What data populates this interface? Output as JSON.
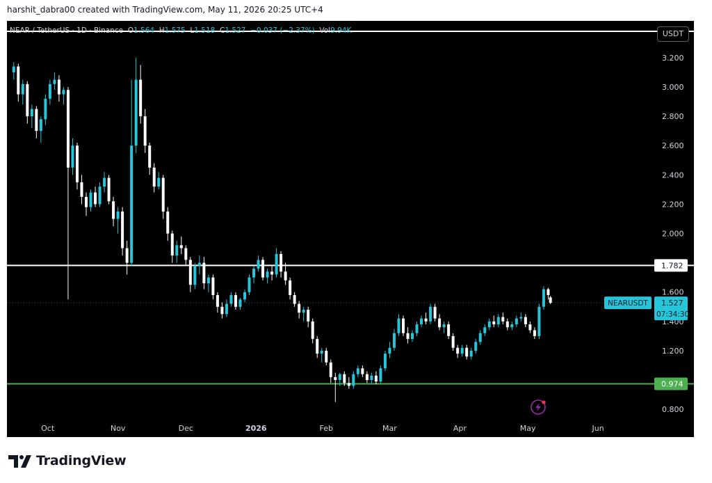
{
  "header": {
    "credit": "harshit_dabra00 created with TradingView.com, May 11, 2026 20:25 UTC+4"
  },
  "legend": {
    "symbol": "NEAR / TetherUS · 1D · Binance",
    "o_label": "O",
    "o": "1.564",
    "h_label": "H",
    "h": "1.575",
    "l_label": "L",
    "l": "1.518",
    "c_label": "C",
    "c": "1.527",
    "chg": "−0.037 (−2.37%)",
    "vol_label": "Vol",
    "vol": "9.94K"
  },
  "currency_button": "USDT",
  "price_tag": {
    "symbol": "NEARUSDT",
    "price": "1.527",
    "countdown": "07:34:30"
  },
  "brand": {
    "name": "TradingView"
  },
  "colors": {
    "up": "#26c6da",
    "down": "#ffffff",
    "resistance": "#ffffff",
    "support": "#4caf50",
    "background": "#000000"
  },
  "chart_data": {
    "type": "candlestick",
    "symbol": "NEARUSDT",
    "ylim": [
      0.72,
      3.38
    ],
    "yticks": [
      "0.800",
      "1.200",
      "1.400",
      "1.600",
      "2.000",
      "2.200",
      "2.400",
      "2.600",
      "2.800",
      "3.000",
      "3.200"
    ],
    "xticks": [
      "Oct",
      "Nov",
      "Dec",
      "2026",
      "Feb",
      "Mar",
      "Apr",
      "May",
      "Jun"
    ],
    "levels": [
      {
        "value": 3.38,
        "label": ""
      },
      {
        "value": 1.782,
        "label": "1.782"
      },
      {
        "value": 0.974,
        "label": "0.974"
      }
    ],
    "last_price": 1.527,
    "candles": [
      [
        "2025-09-16",
        3.1,
        3.17,
        3.05,
        3.14
      ],
      [
        "2025-09-18",
        3.14,
        3.16,
        2.9,
        2.95
      ],
      [
        "2025-09-20",
        2.95,
        3.05,
        2.88,
        3.02
      ],
      [
        "2025-09-22",
        3.02,
        3.04,
        2.75,
        2.8
      ],
      [
        "2025-09-24",
        2.8,
        2.88,
        2.72,
        2.85
      ],
      [
        "2025-09-26",
        2.85,
        2.87,
        2.65,
        2.7
      ],
      [
        "2025-09-28",
        2.7,
        2.8,
        2.62,
        2.78
      ],
      [
        "2025-09-30",
        2.78,
        2.95,
        2.74,
        2.92
      ],
      [
        "2025-10-02",
        2.92,
        3.05,
        2.88,
        3.02
      ],
      [
        "2025-10-04",
        3.02,
        3.1,
        2.98,
        3.05
      ],
      [
        "2025-10-06",
        3.05,
        3.08,
        2.9,
        2.95
      ],
      [
        "2025-10-08",
        2.95,
        3.0,
        2.88,
        2.98
      ],
      [
        "2025-10-10",
        2.98,
        3.0,
        1.55,
        2.45
      ],
      [
        "2025-10-12",
        2.45,
        2.65,
        2.4,
        2.6
      ],
      [
        "2025-10-14",
        2.6,
        2.62,
        2.3,
        2.35
      ],
      [
        "2025-10-16",
        2.35,
        2.4,
        2.2,
        2.25
      ],
      [
        "2025-10-18",
        2.25,
        2.28,
        2.12,
        2.18
      ],
      [
        "2025-10-20",
        2.18,
        2.3,
        2.15,
        2.28
      ],
      [
        "2025-10-22",
        2.28,
        2.32,
        2.18,
        2.2
      ],
      [
        "2025-10-24",
        2.2,
        2.35,
        2.18,
        2.32
      ],
      [
        "2025-10-26",
        2.32,
        2.42,
        2.28,
        2.38
      ],
      [
        "2025-10-28",
        2.38,
        2.4,
        2.2,
        2.22
      ],
      [
        "2025-10-30",
        2.22,
        2.25,
        2.05,
        2.1
      ],
      [
        "2025-11-01",
        2.1,
        2.18,
        2.0,
        2.15
      ],
      [
        "2025-11-03",
        2.15,
        2.18,
        1.85,
        1.9
      ],
      [
        "2025-11-05",
        1.9,
        1.95,
        1.72,
        1.8
      ],
      [
        "2025-11-07",
        1.8,
        3.05,
        1.78,
        2.6
      ],
      [
        "2025-11-09",
        2.6,
        3.2,
        2.55,
        3.05
      ],
      [
        "2025-11-11",
        3.05,
        3.15,
        2.75,
        2.8
      ],
      [
        "2025-11-13",
        2.8,
        2.85,
        2.55,
        2.6
      ],
      [
        "2025-11-15",
        2.6,
        2.62,
        2.4,
        2.45
      ],
      [
        "2025-11-17",
        2.45,
        2.48,
        2.28,
        2.32
      ],
      [
        "2025-11-19",
        2.32,
        2.42,
        2.3,
        2.38
      ],
      [
        "2025-11-21",
        2.38,
        2.4,
        2.1,
        2.15
      ],
      [
        "2025-11-23",
        2.15,
        2.18,
        1.95,
        2.0
      ],
      [
        "2025-11-25",
        2.0,
        2.02,
        1.8,
        1.85
      ],
      [
        "2025-11-27",
        1.85,
        1.95,
        1.8,
        1.92
      ],
      [
        "2025-11-29",
        1.92,
        1.98,
        1.86,
        1.9
      ],
      [
        "2025-12-01",
        1.9,
        1.92,
        1.78,
        1.82
      ],
      [
        "2025-12-03",
        1.82,
        1.84,
        1.6,
        1.65
      ],
      [
        "2025-12-05",
        1.65,
        1.8,
        1.62,
        1.78
      ],
      [
        "2025-12-07",
        1.78,
        1.85,
        1.72,
        1.8
      ],
      [
        "2025-12-09",
        1.8,
        1.84,
        1.62,
        1.66
      ],
      [
        "2025-12-11",
        1.66,
        1.72,
        1.6,
        1.7
      ],
      [
        "2025-12-13",
        1.7,
        1.72,
        1.55,
        1.58
      ],
      [
        "2025-12-15",
        1.58,
        1.6,
        1.46,
        1.5
      ],
      [
        "2025-12-17",
        1.5,
        1.53,
        1.42,
        1.45
      ],
      [
        "2025-12-19",
        1.45,
        1.55,
        1.43,
        1.52
      ],
      [
        "2025-12-21",
        1.52,
        1.6,
        1.5,
        1.58
      ],
      [
        "2025-12-23",
        1.58,
        1.6,
        1.48,
        1.5
      ],
      [
        "2025-12-25",
        1.5,
        1.56,
        1.48,
        1.55
      ],
      [
        "2025-12-27",
        1.55,
        1.62,
        1.53,
        1.6
      ],
      [
        "2025-12-29",
        1.6,
        1.72,
        1.58,
        1.7
      ],
      [
        "2025-12-31",
        1.7,
        1.78,
        1.66,
        1.76
      ],
      [
        "2026-01-02",
        1.76,
        1.85,
        1.74,
        1.82
      ],
      [
        "2026-01-04",
        1.82,
        1.84,
        1.68,
        1.7
      ],
      [
        "2026-01-06",
        1.7,
        1.76,
        1.66,
        1.74
      ],
      [
        "2026-01-08",
        1.74,
        1.78,
        1.68,
        1.72
      ],
      [
        "2026-01-10",
        1.72,
        1.9,
        1.7,
        1.86
      ],
      [
        "2026-01-12",
        1.86,
        1.88,
        1.7,
        1.74
      ],
      [
        "2026-01-14",
        1.74,
        1.8,
        1.65,
        1.68
      ],
      [
        "2026-01-16",
        1.68,
        1.7,
        1.55,
        1.58
      ],
      [
        "2026-01-18",
        1.58,
        1.6,
        1.5,
        1.52
      ],
      [
        "2026-01-20",
        1.52,
        1.54,
        1.42,
        1.46
      ],
      [
        "2026-01-22",
        1.46,
        1.5,
        1.4,
        1.48
      ],
      [
        "2026-01-24",
        1.48,
        1.5,
        1.36,
        1.4
      ],
      [
        "2026-01-26",
        1.4,
        1.42,
        1.25,
        1.28
      ],
      [
        "2026-01-28",
        1.28,
        1.3,
        1.15,
        1.18
      ],
      [
        "2026-01-30",
        1.18,
        1.22,
        1.12,
        1.2
      ],
      [
        "2026-02-01",
        1.2,
        1.22,
        1.1,
        1.12
      ],
      [
        "2026-02-03",
        1.12,
        1.14,
        0.98,
        1.02
      ],
      [
        "2026-02-05",
        1.02,
        1.05,
        0.85,
        1.0
      ],
      [
        "2026-02-07",
        1.0,
        1.05,
        0.96,
        1.04
      ],
      [
        "2026-02-09",
        1.04,
        1.06,
        0.96,
        0.98
      ],
      [
        "2026-02-11",
        0.98,
        1.02,
        0.94,
        0.96
      ],
      [
        "2026-02-13",
        0.96,
        1.06,
        0.94,
        1.04
      ],
      [
        "2026-02-15",
        1.04,
        1.1,
        1.02,
        1.08
      ],
      [
        "2026-02-17",
        1.08,
        1.1,
        1.02,
        1.04
      ],
      [
        "2026-02-19",
        1.04,
        1.06,
        0.98,
        1.0
      ],
      [
        "2026-02-21",
        1.0,
        1.05,
        0.97,
        1.03
      ],
      [
        "2026-02-23",
        1.03,
        1.06,
        0.97,
        0.99
      ],
      [
        "2026-02-25",
        0.99,
        1.1,
        0.98,
        1.08
      ],
      [
        "2026-02-27",
        1.08,
        1.2,
        1.06,
        1.18
      ],
      [
        "2026-03-01",
        1.18,
        1.26,
        1.15,
        1.22
      ],
      [
        "2026-03-03",
        1.22,
        1.35,
        1.2,
        1.32
      ],
      [
        "2026-03-05",
        1.32,
        1.45,
        1.3,
        1.42
      ],
      [
        "2026-03-07",
        1.42,
        1.44,
        1.3,
        1.32
      ],
      [
        "2026-03-09",
        1.32,
        1.36,
        1.25,
        1.28
      ],
      [
        "2026-03-11",
        1.28,
        1.34,
        1.26,
        1.32
      ],
      [
        "2026-03-13",
        1.32,
        1.4,
        1.3,
        1.38
      ],
      [
        "2026-03-15",
        1.38,
        1.44,
        1.36,
        1.42
      ],
      [
        "2026-03-17",
        1.42,
        1.46,
        1.38,
        1.4
      ],
      [
        "2026-03-19",
        1.4,
        1.52,
        1.38,
        1.5
      ],
      [
        "2026-03-21",
        1.5,
        1.52,
        1.4,
        1.42
      ],
      [
        "2026-03-23",
        1.42,
        1.45,
        1.34,
        1.36
      ],
      [
        "2026-03-25",
        1.36,
        1.4,
        1.32,
        1.38
      ],
      [
        "2026-03-27",
        1.38,
        1.4,
        1.28,
        1.3
      ],
      [
        "2026-03-29",
        1.3,
        1.32,
        1.2,
        1.22
      ],
      [
        "2026-03-31",
        1.22,
        1.24,
        1.15,
        1.18
      ],
      [
        "2026-04-02",
        1.18,
        1.24,
        1.16,
        1.22
      ],
      [
        "2026-04-04",
        1.22,
        1.24,
        1.14,
        1.16
      ],
      [
        "2026-04-06",
        1.16,
        1.22,
        1.14,
        1.2
      ],
      [
        "2026-04-08",
        1.2,
        1.28,
        1.18,
        1.26
      ],
      [
        "2026-04-10",
        1.26,
        1.34,
        1.24,
        1.32
      ],
      [
        "2026-04-12",
        1.32,
        1.38,
        1.3,
        1.36
      ],
      [
        "2026-04-14",
        1.36,
        1.42,
        1.34,
        1.4
      ],
      [
        "2026-04-16",
        1.4,
        1.44,
        1.36,
        1.38
      ],
      [
        "2026-04-18",
        1.38,
        1.45,
        1.36,
        1.43
      ],
      [
        "2026-04-20",
        1.43,
        1.46,
        1.38,
        1.4
      ],
      [
        "2026-04-22",
        1.4,
        1.42,
        1.34,
        1.36
      ],
      [
        "2026-04-24",
        1.36,
        1.4,
        1.34,
        1.38
      ],
      [
        "2026-04-26",
        1.38,
        1.44,
        1.36,
        1.42
      ],
      [
        "2026-04-28",
        1.42,
        1.46,
        1.4,
        1.43
      ],
      [
        "2026-04-30",
        1.43,
        1.45,
        1.36,
        1.38
      ],
      [
        "2026-05-02",
        1.38,
        1.4,
        1.32,
        1.34
      ],
      [
        "2026-05-04",
        1.34,
        1.36,
        1.28,
        1.3
      ],
      [
        "2026-05-06",
        1.3,
        1.52,
        1.28,
        1.5
      ],
      [
        "2026-05-08",
        1.5,
        1.64,
        1.48,
        1.62
      ],
      [
        "2026-05-10",
        1.62,
        1.63,
        1.55,
        1.58
      ],
      [
        "2026-05-11",
        1.564,
        1.575,
        1.518,
        1.527
      ]
    ]
  }
}
